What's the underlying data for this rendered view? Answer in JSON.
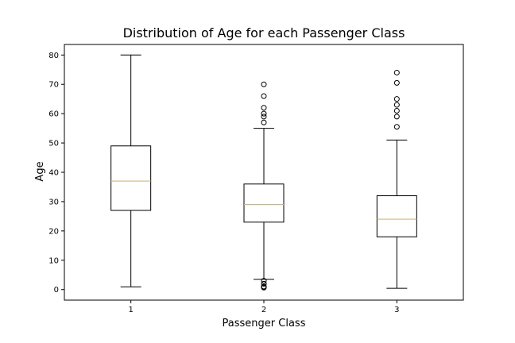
{
  "chart_data": {
    "type": "box",
    "title": "Distribution of Age for each Passenger Class",
    "xlabel": "Passenger Class",
    "ylabel": "Age",
    "ylim": [
      -3.6,
      83.6
    ],
    "yticks": [
      0,
      10,
      20,
      30,
      40,
      50,
      60,
      70,
      80
    ],
    "grid": false,
    "colors": {
      "box": "#000000",
      "median": "#c8b888",
      "flier": "#000000"
    },
    "boxes": [
      {
        "category": "1",
        "whisker_low": 0.92,
        "q1": 27,
        "median": 37,
        "q3": 49,
        "whisker_high": 80,
        "fliers": []
      },
      {
        "category": "2",
        "whisker_low": 3.5,
        "q1": 23,
        "median": 29,
        "q3": 36,
        "whisker_high": 55,
        "fliers": [
          57,
          59,
          60,
          62,
          66,
          70,
          0.67,
          0.83,
          0.83,
          1,
          1,
          2,
          2,
          3
        ]
      },
      {
        "category": "3",
        "whisker_low": 0.42,
        "q1": 18,
        "median": 24,
        "q3": 32,
        "whisker_high": 51,
        "fliers": [
          55.5,
          59,
          61,
          63,
          65,
          70.5,
          74
        ]
      }
    ]
  }
}
